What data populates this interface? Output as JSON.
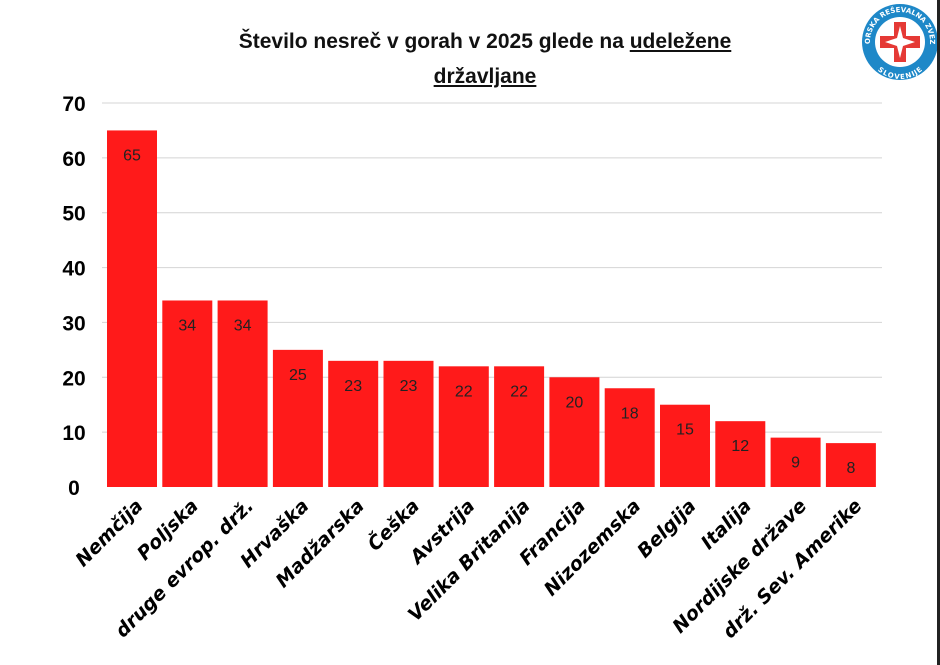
{
  "chart_data": {
    "type": "bar",
    "title_plain": "Število nesreč v gorah v 2025 glede na ",
    "title_underlined_1": "udeležene",
    "title_underlined_2": "državljane",
    "categories": [
      "Nemčija",
      "Poljska",
      "druge evrop. drž.",
      "Hrvaška",
      "Madžarska",
      "Češka",
      "Avstrija",
      "Velika Britanija",
      "Francija",
      "Nizozemska",
      "Belgija",
      "Italija",
      "Nordijske države",
      "drž. Sev. Amerike"
    ],
    "values": [
      65,
      34,
      34,
      25,
      23,
      23,
      22,
      22,
      20,
      18,
      15,
      12,
      9,
      8
    ],
    "ylim": [
      0,
      70
    ],
    "yticks": [
      0,
      10,
      20,
      30,
      40,
      50,
      60,
      70
    ],
    "grid": true,
    "bar_color": "#ff1a1a",
    "xlabel": "",
    "ylabel": ""
  },
  "logo": {
    "text_top": "GORSKA REŠEVALNA ZVEZA",
    "text_bottom": "SLOVENIJE",
    "color": "#1e88c8",
    "cross_color": "#e53935"
  }
}
